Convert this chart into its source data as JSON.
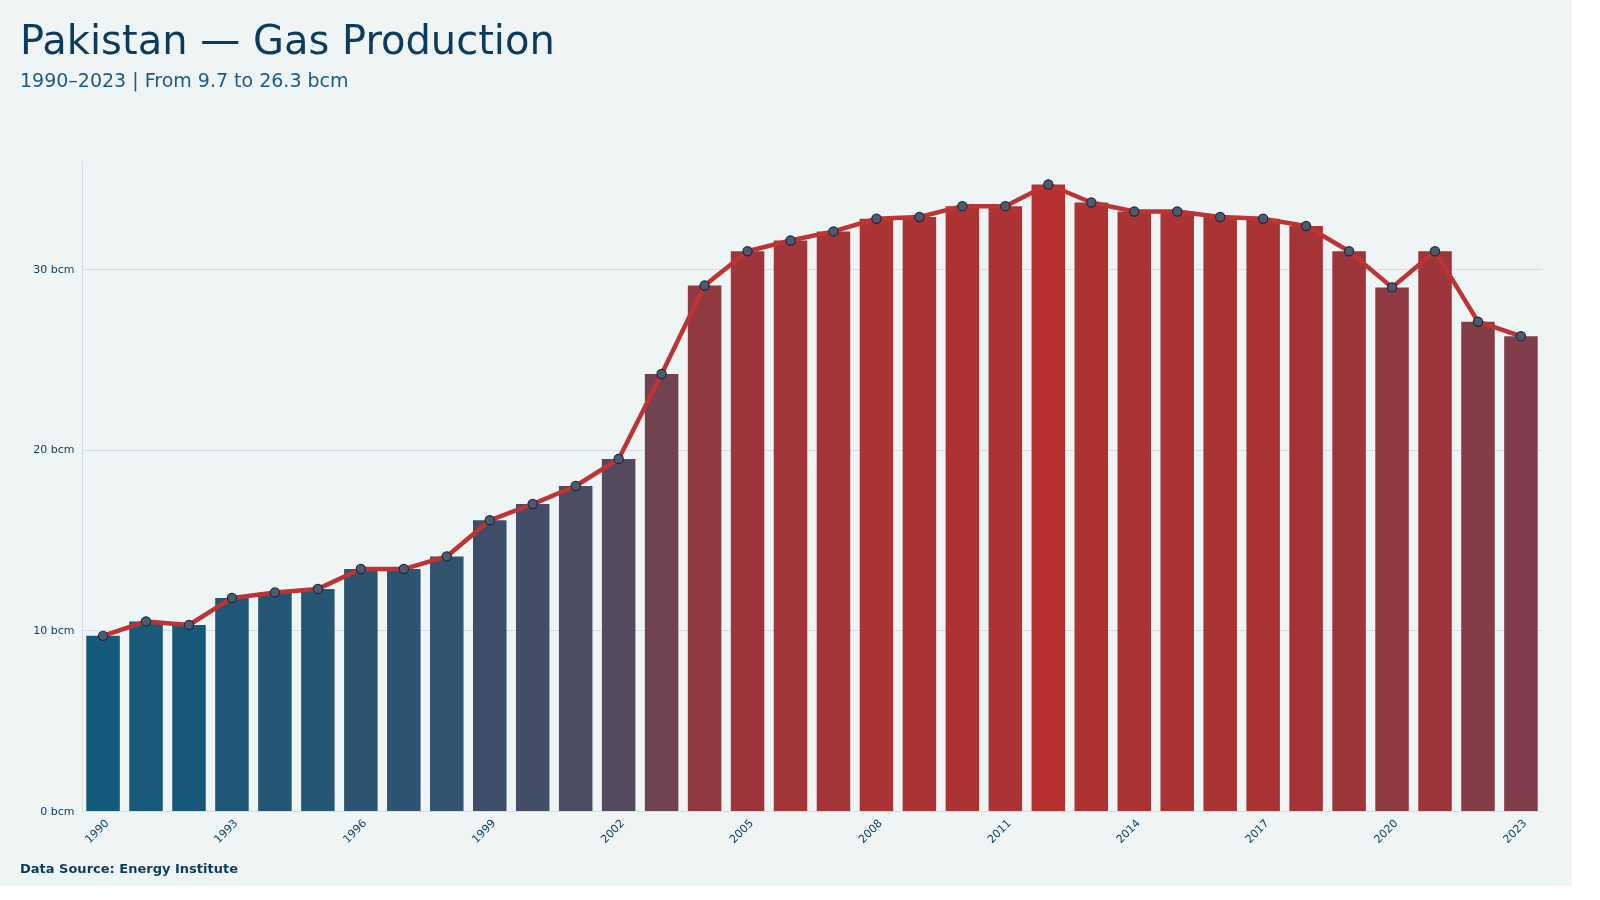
{
  "chart_data": {
    "type": "bar",
    "title": "Pakistan — Gas Production",
    "subtitle": "1990–2023 | From 9.7 to 26.3 bcm",
    "categories": [
      "1990",
      null,
      null,
      "1993",
      null,
      null,
      "1996",
      null,
      null,
      "1999",
      null,
      null,
      "2002",
      null,
      null,
      "2005",
      null,
      null,
      "2008",
      null,
      null,
      "2011",
      null,
      null,
      "2014",
      null,
      null,
      "2017",
      null,
      null,
      "2020",
      null,
      null,
      "2023"
    ],
    "series": [
      {
        "colors": [
          "#145a7c",
          "#19597a",
          "#18597a",
          "#225676",
          "#235675",
          "#255674",
          "#2c5471",
          "#2c5471",
          "#30536e",
          "#3d4f68",
          "#434e66",
          "#494c62",
          "#534a5e",
          "#71424f",
          "#913940",
          "#9d363a",
          "#a13539",
          "#a43437",
          "#a93335",
          "#a93335",
          "#ad3233",
          "#ad3233",
          "#b5302f",
          "#af3232",
          "#ab3334",
          "#ab3334",
          "#a93335",
          "#a93335",
          "#a63436",
          "#9d363a",
          "#903a41",
          "#9d363a",
          "#843d46",
          "#7f3e49"
        ],
        "values": [
          9.7,
          10.5,
          10.3,
          11.8,
          12.1,
          12.3,
          13.4,
          13.4,
          14.1,
          16.1,
          17.0,
          18.0,
          19.5,
          24.2,
          29.1,
          31.0,
          31.6,
          32.1,
          32.8,
          32.9,
          33.5,
          33.5,
          34.7,
          33.7,
          33.2,
          33.2,
          32.9,
          32.8,
          32.4,
          31.0,
          29.0,
          31.0,
          27.1,
          26.3
        ]
      },
      {
        "type": "line",
        "color": "#bc3434",
        "values": [
          9.7,
          10.5,
          10.3,
          11.8,
          12.1,
          12.3,
          13.4,
          13.4,
          14.1,
          16.1,
          17.0,
          18.0,
          19.5,
          24.2,
          29.1,
          31.0,
          31.6,
          32.1,
          32.8,
          32.9,
          33.5,
          33.5,
          34.7,
          33.7,
          33.2,
          33.2,
          32.9,
          32.8,
          32.4,
          31.0,
          29.0,
          31.0,
          27.1,
          26.3
        ]
      }
    ],
    "ylim": [
      0,
      36
    ],
    "yticks": [
      {
        "value": 0,
        "label": "0 bcm"
      },
      {
        "value": 10,
        "label": "10 bcm"
      },
      {
        "value": 20,
        "label": "20 bcm"
      },
      {
        "value": 30,
        "label": "30 bcm"
      }
    ],
    "grid": "y",
    "marker": "circle",
    "line_style": "solid",
    "annotations": [
      "Data Source: Energy Institute"
    ]
  }
}
